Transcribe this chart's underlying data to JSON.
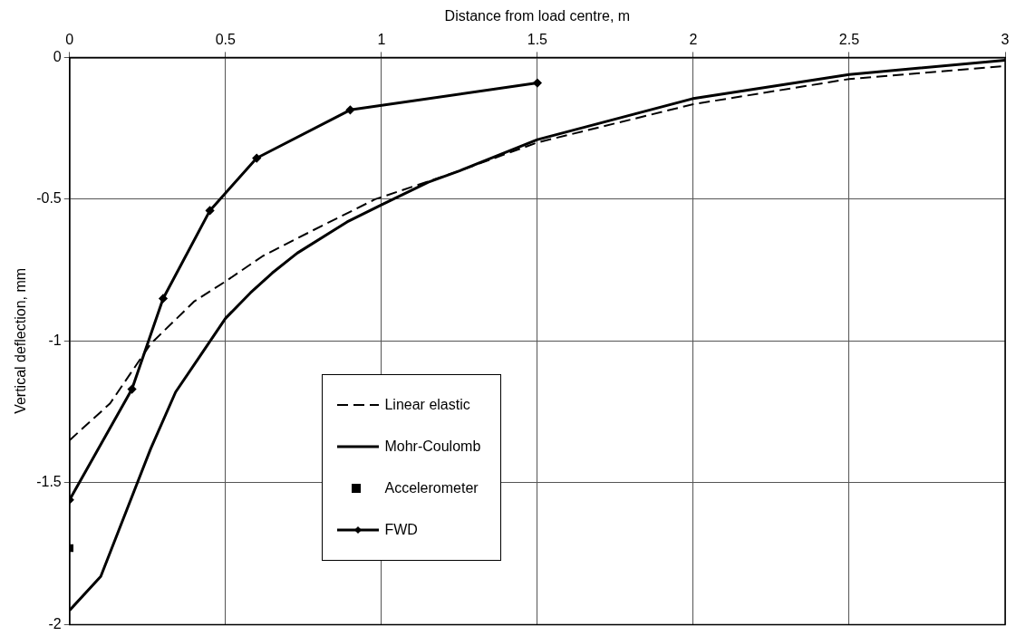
{
  "chart_data": {
    "type": "line",
    "xlabel": "Distance from load centre, m",
    "ylabel": "Vertical deflection, mm",
    "xlim": [
      0,
      3
    ],
    "xticks": [
      0,
      0.5,
      1,
      1.5,
      2,
      2.5,
      3
    ],
    "ylim": [
      -2,
      0
    ],
    "yticks": [
      -2,
      -1.5,
      -1,
      -0.5,
      0
    ],
    "grid": true,
    "legend": "bottom",
    "series": [
      {
        "name": "Linear elastic",
        "type": "line",
        "color": "#000000",
        "line_style": "dashed",
        "marker": "none",
        "x": [
          0,
          0.13,
          0.26,
          0.4,
          0.5,
          0.62,
          0.78,
          0.98,
          1.25,
          1.5,
          2,
          2.5,
          3
        ],
        "values": [
          -1.35,
          -1.22,
          -1.01,
          -0.86,
          -0.79,
          -0.7,
          -0.61,
          -0.5,
          -0.4,
          -0.3,
          -0.165,
          -0.076,
          -0.03
        ]
      },
      {
        "name": "Mohr-Coulomb",
        "type": "line",
        "color": "#000000",
        "line_style": "solid",
        "marker": "none",
        "x": [
          0,
          0.1,
          0.26,
          0.34,
          0.42,
          0.5,
          0.58,
          0.65,
          0.73,
          0.89,
          1,
          1.15,
          1.25,
          1.5,
          2,
          2.5,
          3
        ],
        "values": [
          -1.95,
          -1.83,
          -1.38,
          -1.18,
          -1.05,
          -0.92,
          -0.83,
          -0.76,
          -0.69,
          -0.58,
          -0.52,
          -0.44,
          -0.4,
          -0.29,
          -0.145,
          -0.06,
          -0.01
        ]
      },
      {
        "name": "Accelerometer",
        "type": "scatter",
        "color": "#000000",
        "marker": "square",
        "x": [
          0
        ],
        "values": [
          -1.73
        ]
      },
      {
        "name": "FWD",
        "type": "line",
        "color": "#000000",
        "line_style": "solid",
        "marker": "diamond",
        "x": [
          0,
          0.2,
          0.3,
          0.45,
          0.6,
          0.9,
          1.5
        ],
        "values": [
          -1.56,
          -1.17,
          -0.85,
          -0.54,
          -0.355,
          -0.185,
          -0.09
        ]
      }
    ]
  }
}
